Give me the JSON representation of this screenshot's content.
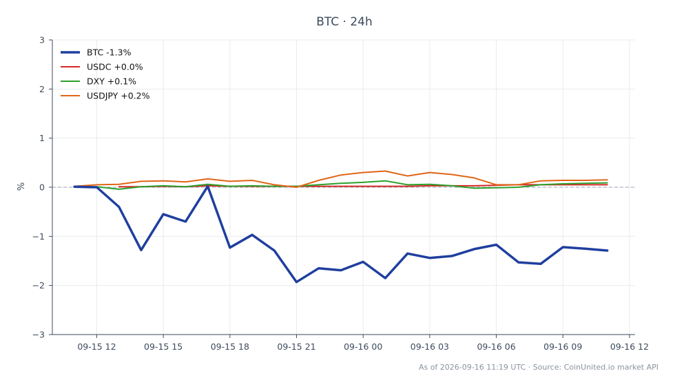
{
  "chart_data": {
    "type": "line",
    "title": "BTC · 24h",
    "xlabel": "",
    "ylabel": "%",
    "ylim": [
      -3,
      3
    ],
    "y_ticks": [
      3,
      2,
      1,
      0,
      -1,
      -2,
      -3
    ],
    "y_tick_labels": [
      "3",
      "2",
      "1",
      "0",
      "−1",
      "−2",
      "−3"
    ],
    "xlim": [
      "2026-09-15 10:00",
      "2026-09-16 12:15"
    ],
    "x_ticks": [
      "2026-09-15 12:00",
      "2026-09-15 15:00",
      "2026-09-15 18:00",
      "2026-09-15 21:00",
      "2026-09-16 00:00",
      "2026-09-16 03:00",
      "2026-09-16 06:00",
      "2026-09-16 09:00",
      "2026-09-16 12:00"
    ],
    "x_tick_labels": [
      "09-15 12",
      "09-15 15",
      "09-15 18",
      "09-15 21",
      "09-16 00",
      "09-16 03",
      "09-16 06",
      "09-16 09",
      "09-16 12"
    ],
    "x": [
      "2026-09-15 11:00",
      "2026-09-15 12:00",
      "2026-09-15 13:00",
      "2026-09-15 14:00",
      "2026-09-15 15:00",
      "2026-09-15 16:00",
      "2026-09-15 17:00",
      "2026-09-15 18:00",
      "2026-09-15 19:00",
      "2026-09-15 20:00",
      "2026-09-15 21:00",
      "2026-09-15 22:00",
      "2026-09-15 23:00",
      "2026-09-16 00:00",
      "2026-09-16 01:00",
      "2026-09-16 02:00",
      "2026-09-16 03:00",
      "2026-09-16 04:00",
      "2026-09-16 05:00",
      "2026-09-16 06:00",
      "2026-09-16 07:00",
      "2026-09-16 08:00",
      "2026-09-16 09:00",
      "2026-09-16 10:00",
      "2026-09-16 11:00"
    ],
    "reference_line": 0,
    "grid": true,
    "legend_position": "top-left",
    "series": [
      {
        "name": "BTC -1.3%",
        "color": "#1f3f9e",
        "values": [
          0.01,
          0.0,
          -0.4,
          -1.28,
          -0.55,
          -0.7,
          0.02,
          -1.23,
          -0.97,
          -1.29,
          -1.93,
          -1.65,
          -1.69,
          -1.52,
          -1.85,
          -1.35,
          -1.44,
          -1.4,
          -1.26,
          -1.17,
          -1.53,
          -1.56,
          -1.22,
          -1.25,
          -1.29
        ]
      },
      {
        "name": "USDC +0.0%",
        "color": "#d62728",
        "values": [
          null,
          null,
          0.01,
          0.01,
          0.02,
          0.01,
          0.03,
          0.02,
          0.02,
          0.02,
          0.02,
          0.02,
          0.02,
          0.02,
          0.02,
          0.02,
          0.03,
          0.03,
          0.03,
          0.04,
          0.05,
          0.05,
          0.05,
          0.05,
          0.05
        ]
      },
      {
        "name": "DXY +0.1%",
        "color": "#2ca02c",
        "values": [
          0.01,
          0.01,
          -0.04,
          0.01,
          0.03,
          0.01,
          0.06,
          0.02,
          0.03,
          0.02,
          0.02,
          0.05,
          0.08,
          0.1,
          0.13,
          0.05,
          0.06,
          0.03,
          -0.02,
          -0.01,
          0.0,
          0.05,
          0.07,
          0.08,
          0.09
        ]
      },
      {
        "name": "USDJPY +0.2%",
        "color": "#e06516",
        "values": [
          0.02,
          0.05,
          0.06,
          0.12,
          0.13,
          0.11,
          0.17,
          0.12,
          0.14,
          0.05,
          0.0,
          0.14,
          0.25,
          0.3,
          0.33,
          0.23,
          0.3,
          0.26,
          0.19,
          0.05,
          0.05,
          0.13,
          0.14,
          0.14,
          0.15
        ]
      }
    ]
  },
  "footer": "As of 2026-09-16 11:19 UTC · Source: CoinUnited.io market API"
}
